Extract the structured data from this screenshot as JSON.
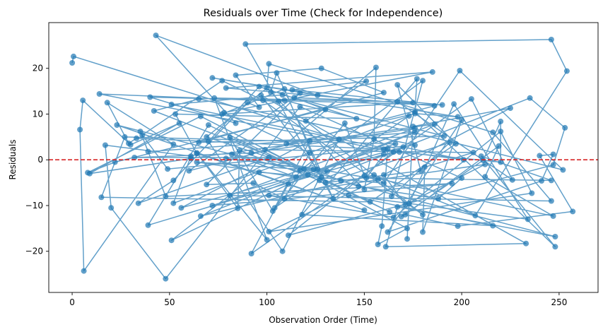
{
  "chart_data": {
    "type": "line",
    "title": "Residuals over Time (Check for Independence)",
    "xlabel": "Observation Order (Time)",
    "ylabel": "Residuals",
    "xlim": [
      -12,
      270
    ],
    "ylim": [
      -29,
      30
    ],
    "xticks": [
      0,
      50,
      100,
      150,
      200,
      250
    ],
    "yticks": [
      -20,
      -10,
      0,
      10,
      20
    ],
    "grid": false,
    "legend": null,
    "series": [
      {
        "marker": "circle",
        "color": "#1f77b4",
        "alpha": 0.7,
        "points": [
          [
            0,
            21.2
          ],
          [
            0.7,
            22.6
          ],
          [
            137,
            4.5
          ],
          [
            108,
            -20
          ],
          [
            70,
            4
          ],
          [
            96,
            16
          ],
          [
            146,
            9
          ],
          [
            53,
            10
          ],
          [
            64,
            1.4
          ],
          [
            150,
            -11
          ],
          [
            23,
            7.6
          ],
          [
            128,
            -3.8
          ],
          [
            109,
            15.5
          ],
          [
            77,
            10
          ],
          [
            175,
            12.5
          ],
          [
            114,
            13.6
          ],
          [
            130,
            11
          ],
          [
            22,
            -0.5
          ],
          [
            8,
            -2.8
          ],
          [
            66,
            9.5
          ],
          [
            119,
            -2
          ],
          [
            42,
            10.7
          ],
          [
            65,
            13.3
          ],
          [
            176,
            3.2
          ],
          [
            49,
            -2
          ],
          [
            36,
            5.4
          ],
          [
            77,
            17.3
          ],
          [
            98,
            13
          ],
          [
            180,
            -12
          ],
          [
            120,
            8.5
          ],
          [
            151,
            17.2
          ],
          [
            113,
            15.3
          ],
          [
            190,
            12
          ],
          [
            40,
            13.7
          ],
          [
            84,
            8
          ],
          [
            43,
            27.2
          ],
          [
            126,
            14.1
          ],
          [
            72,
            17.9
          ],
          [
            198,
            9.4
          ],
          [
            176,
            10.1
          ],
          [
            110,
            3.5
          ],
          [
            156,
            20.2
          ],
          [
            155,
            4.5
          ],
          [
            150,
            -6.5
          ],
          [
            102,
            14.8
          ],
          [
            105,
            19
          ],
          [
            134,
            -8.5
          ],
          [
            89,
            25.3
          ],
          [
            246,
            26.3
          ],
          [
            254,
            19.4
          ],
          [
            207,
            -12.2
          ],
          [
            155,
            -3.3
          ],
          [
            66,
            -12.3
          ],
          [
            186,
            7.8
          ],
          [
            61,
            0.3
          ],
          [
            9,
            -3
          ],
          [
            55,
            8
          ],
          [
            30,
            3.3
          ],
          [
            5.5,
            13
          ],
          [
            4,
            6.6
          ],
          [
            6,
            -24.3
          ],
          [
            52,
            3.4
          ],
          [
            18,
            12.5
          ],
          [
            29,
            3.6
          ],
          [
            33,
            4.7
          ],
          [
            160,
            2.3
          ],
          [
            201,
            0
          ],
          [
            170,
            2.8
          ],
          [
            56,
            -10.5
          ],
          [
            122,
            4.1
          ],
          [
            104,
            -10.5
          ],
          [
            173,
            9.6
          ],
          [
            52,
            -9.5
          ],
          [
            61,
            0.8
          ],
          [
            17,
            3.2
          ],
          [
            20,
            -10.5
          ],
          [
            48,
            -26
          ],
          [
            117,
            11.6
          ],
          [
            200,
            -4
          ],
          [
            188,
            -8.5
          ],
          [
            147,
            -5.8
          ],
          [
            69,
            5
          ],
          [
            100,
            15.7
          ],
          [
            101,
            21
          ],
          [
            216,
            6
          ],
          [
            246,
            -9
          ],
          [
            81,
            -7.8
          ],
          [
            176,
            6.9
          ],
          [
            92,
            1.5
          ],
          [
            32,
            0.5
          ],
          [
            101,
            0.5
          ],
          [
            34,
            -9.5
          ],
          [
            52,
            -4.5
          ],
          [
            90,
            12.5
          ],
          [
            96,
            11.5
          ],
          [
            84,
            18.5
          ],
          [
            128,
            20
          ],
          [
            160,
            14.7
          ],
          [
            65,
            3.8
          ],
          [
            191,
            5.2
          ],
          [
            108,
            14.2
          ],
          [
            51,
            12.1
          ],
          [
            162,
            2.4
          ],
          [
            159,
            -14.5
          ],
          [
            157,
            -18.5
          ],
          [
            172,
            -15
          ],
          [
            121,
            -3.3
          ],
          [
            51,
            -17.6
          ],
          [
            96,
            -2.7
          ],
          [
            160,
            -5.1
          ],
          [
            199,
            19.5
          ],
          [
            252,
            -2.2
          ],
          [
            109,
            13
          ],
          [
            78,
            10.3
          ],
          [
            122,
            1.5
          ],
          [
            109,
            -8.5
          ],
          [
            93,
            -5.1
          ],
          [
            69,
            -5.4
          ],
          [
            117,
            14.6
          ],
          [
            60,
            -2.4
          ],
          [
            186,
            11.8
          ],
          [
            79,
            15.7
          ],
          [
            185,
            19.2
          ],
          [
            106,
            12.8
          ],
          [
            14,
            14.4
          ],
          [
            165,
            1.7
          ],
          [
            111,
            -16.5
          ],
          [
            247,
            -1.1
          ],
          [
            253,
            7
          ],
          [
            235,
            13.5
          ],
          [
            127,
            -4.5
          ],
          [
            86,
            2
          ],
          [
            85,
            -10.6
          ],
          [
            64,
            1.5
          ],
          [
            100,
            -17.5
          ],
          [
            73,
            13.5
          ],
          [
            167,
            12.7
          ],
          [
            226,
            -4.4
          ],
          [
            205,
            13.3
          ],
          [
            92,
            -20.5
          ],
          [
            111,
            -5.3
          ],
          [
            176,
            6
          ],
          [
            39,
            1.8
          ],
          [
            35,
            6.2
          ],
          [
            48,
            -8
          ],
          [
            195,
            -5.2
          ],
          [
            72,
            -10
          ],
          [
            166,
            3.5
          ],
          [
            27,
            5
          ],
          [
            15,
            -8.2
          ],
          [
            153,
            -9.2
          ],
          [
            197,
            3.5
          ],
          [
            167,
            16.4
          ],
          [
            179,
            -2.4
          ],
          [
            130,
            -5
          ],
          [
            194,
            3.8
          ],
          [
            164,
            -8
          ],
          [
            180,
            17.3
          ],
          [
            117,
            -2.3
          ],
          [
            81,
            4.9
          ],
          [
            103,
            -11.2
          ],
          [
            140,
            8
          ],
          [
            150,
            -3.5
          ],
          [
            247,
            -12.3
          ],
          [
            212,
            -3.7
          ],
          [
            219,
            3
          ],
          [
            171,
            -12
          ],
          [
            198,
            -14.5
          ],
          [
            257,
            -11.3
          ],
          [
            240,
            0.9
          ],
          [
            247,
            1.2
          ],
          [
            241,
            -4.6
          ],
          [
            162,
            -15.8
          ],
          [
            200,
            8.7
          ],
          [
            180,
            -15.8
          ],
          [
            181,
            -1.6
          ],
          [
            206,
            1.6
          ],
          [
            99,
            2.2
          ],
          [
            163,
            -11.4
          ],
          [
            70,
            7.6
          ],
          [
            39,
            -14.3
          ],
          [
            160,
            1.2
          ],
          [
            151,
            -4
          ],
          [
            246,
            -4.5
          ],
          [
            210,
            0.8
          ],
          [
            248,
            -19
          ],
          [
            176,
            10.5
          ],
          [
            177,
            17.7
          ],
          [
            118,
            -12
          ],
          [
            216,
            -14.4
          ],
          [
            142,
            -7.8
          ],
          [
            234,
            -13
          ],
          [
            196,
            12.2
          ],
          [
            173,
            -9.6
          ],
          [
            172,
            -17.3
          ],
          [
            175,
            7.3
          ],
          [
            225,
            11.3
          ],
          [
            160,
            -3.3
          ],
          [
            171,
            -9.8
          ],
          [
            212,
            -1
          ],
          [
            101,
            -7.8
          ],
          [
            165,
            -12.6
          ],
          [
            220,
            6.2
          ],
          [
            236,
            -7.3
          ],
          [
            101,
            -15.7
          ],
          [
            157,
            -4.3
          ],
          [
            82,
            1.2
          ],
          [
            115,
            -3.8
          ],
          [
            64,
            -0.5
          ],
          [
            131,
            -2.5
          ],
          [
            79,
            0.3
          ],
          [
            124,
            -2
          ],
          [
            138,
            -4.6
          ],
          [
            248,
            -16.8
          ],
          [
            167,
            -10.3
          ],
          [
            161,
            -19
          ],
          [
            233,
            -18.3
          ],
          [
            97,
            14.1
          ],
          [
            126,
            -2.1
          ],
          [
            168,
            1.7
          ],
          [
            220,
            -0.5
          ],
          [
            220,
            8.4
          ],
          [
            211,
            -0.1
          ],
          [
            169,
            -12.4
          ]
        ]
      }
    ],
    "reference_line": {
      "y": 0,
      "color": "#d62728",
      "style": "dashed"
    }
  }
}
